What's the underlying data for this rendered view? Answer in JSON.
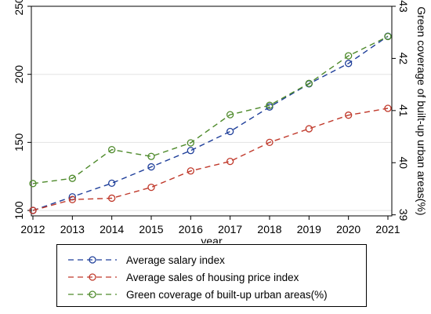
{
  "chart_data": {
    "type": "line",
    "title": "",
    "xlabel": "year",
    "ylabel": "",
    "y2label": "Green coverage of built-up urban areas(%)",
    "x": [
      2012,
      2013,
      2014,
      2015,
      2016,
      2017,
      2018,
      2019,
      2020,
      2021
    ],
    "ylim": [
      96,
      250
    ],
    "yticks": [
      100,
      150,
      200,
      250
    ],
    "y2lim": [
      38.98,
      43.0
    ],
    "y2ticks": [
      39,
      40,
      41,
      42,
      43
    ],
    "grid": true,
    "legend_position": "bottom",
    "series": [
      {
        "name": "Average salary index",
        "axis": "left",
        "color": "#1f3f9a",
        "values": [
          100,
          110,
          120,
          132,
          144,
          158,
          176,
          193,
          208,
          228
        ]
      },
      {
        "name": "Average sales of housing price index",
        "axis": "left",
        "color": "#c0392b",
        "values": [
          100,
          108,
          109,
          117,
          129,
          136,
          150,
          160,
          170,
          175
        ]
      },
      {
        "name": "Green coverage of built-up urban areas(%)",
        "axis": "right",
        "color": "#4e8a2b",
        "values": [
          39.6,
          39.7,
          40.25,
          40.12,
          40.38,
          40.92,
          41.1,
          41.52,
          42.05,
          42.42
        ]
      }
    ]
  }
}
